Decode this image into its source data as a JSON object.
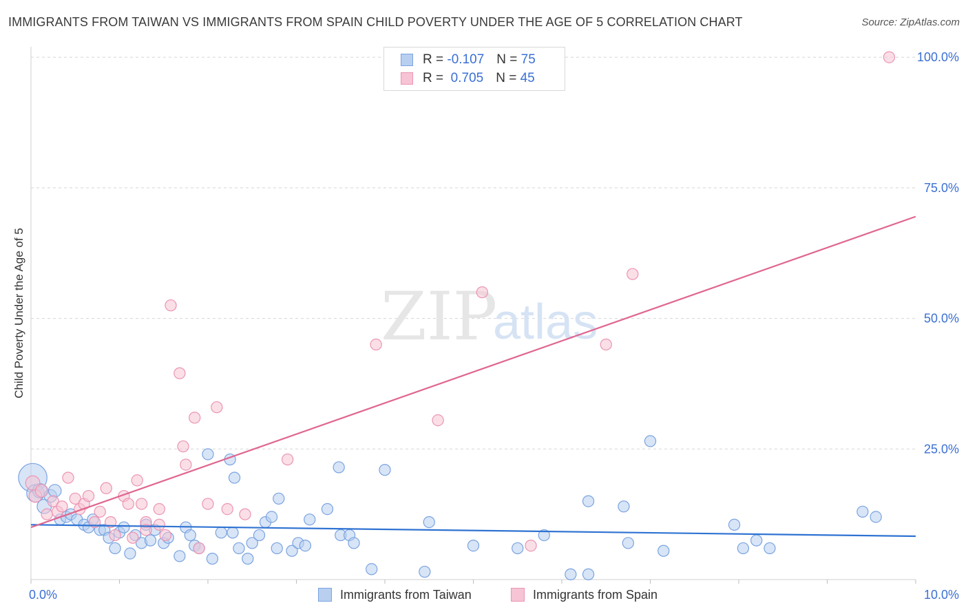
{
  "header": {
    "title": "IMMIGRANTS FROM TAIWAN VS IMMIGRANTS FROM SPAIN CHILD POVERTY UNDER THE AGE OF 5 CORRELATION CHART",
    "source": "Source: ZipAtlas.com"
  },
  "watermark": {
    "part1": "ZIP",
    "part2": "atlas"
  },
  "legend": {
    "rows": [
      {
        "r_label": "R =",
        "r_value": "-0.107",
        "n_label": "N =",
        "n_value": "75"
      },
      {
        "r_label": "R =",
        "r_value": "0.705",
        "n_label": "N =",
        "n_value": "45"
      }
    ]
  },
  "bottom_legend": {
    "taiwan": "Immigrants from Taiwan",
    "spain": "Immigrants from Spain"
  },
  "colors": {
    "taiwan_fill": "#b8cff0",
    "taiwan_stroke": "#7aa3e0",
    "taiwan_line": "#2e72d2",
    "spain_fill": "#f6c4d4",
    "spain_stroke": "#ec94b2",
    "spain_line": "#e06690",
    "tick_label": "#3a6fd4",
    "grid": "#d5d5d5"
  },
  "chart_data": {
    "type": "scatter",
    "title": "IMMIGRANTS FROM TAIWAN VS IMMIGRANTS FROM SPAIN CHILD POVERTY UNDER THE AGE OF 5 CORRELATION CHART",
    "xlabel": "",
    "ylabel": "Child Poverty Under the Age of 5",
    "xlim": [
      0,
      10
    ],
    "ylim": [
      0,
      102
    ],
    "x_ticks": [
      0,
      1,
      2,
      3,
      4,
      5,
      6,
      7,
      8,
      9,
      10
    ],
    "x_tick_labels": [
      {
        "value": 0,
        "label": "0.0%"
      },
      {
        "value": 10,
        "label": "10.0%"
      }
    ],
    "y_ticks": [
      {
        "value": 25,
        "label": "25.0%"
      },
      {
        "value": 50,
        "label": "50.0%"
      },
      {
        "value": 75,
        "label": "75.0%"
      },
      {
        "value": 100,
        "label": "100.0%"
      }
    ],
    "series": [
      {
        "name": "Immigrants from Taiwan",
        "R": -0.107,
        "N": 75,
        "trend": {
          "x": [
            0,
            10
          ],
          "y": [
            10.5,
            8.3
          ]
        },
        "points": [
          [
            0.02,
            19.5,
            18
          ],
          [
            0.05,
            16.5,
            11
          ],
          [
            0.1,
            17,
            9
          ],
          [
            0.15,
            14,
            9
          ],
          [
            0.22,
            16,
            8
          ],
          [
            0.27,
            17,
            8
          ],
          [
            0.33,
            11.5,
            7
          ],
          [
            0.4,
            12,
            7
          ],
          [
            0.45,
            12.5,
            7
          ],
          [
            0.52,
            11.5,
            7
          ],
          [
            0.6,
            10.5,
            7
          ],
          [
            0.65,
            10,
            7
          ],
          [
            0.7,
            11.5,
            7
          ],
          [
            0.78,
            9.5,
            7
          ],
          [
            0.83,
            9.5,
            7
          ],
          [
            0.88,
            8,
            7
          ],
          [
            0.95,
            6,
            7
          ],
          [
            1.0,
            9,
            7
          ],
          [
            1.05,
            10,
            7
          ],
          [
            1.12,
            5,
            7
          ],
          [
            1.18,
            8.5,
            7
          ],
          [
            1.25,
            7,
            7
          ],
          [
            1.3,
            10.5,
            7
          ],
          [
            1.35,
            7.5,
            7
          ],
          [
            1.4,
            9.5,
            7
          ],
          [
            1.5,
            7,
            7
          ],
          [
            1.55,
            8,
            7
          ],
          [
            1.68,
            4.5,
            7
          ],
          [
            1.75,
            10,
            7
          ],
          [
            1.8,
            8.5,
            7
          ],
          [
            1.85,
            6.5,
            7
          ],
          [
            1.9,
            6,
            7
          ],
          [
            2.0,
            24,
            7
          ],
          [
            2.05,
            4,
            7
          ],
          [
            2.15,
            9,
            7
          ],
          [
            2.25,
            23,
            7
          ],
          [
            2.28,
            9,
            7
          ],
          [
            2.35,
            6,
            7
          ],
          [
            2.3,
            19.5,
            7
          ],
          [
            2.45,
            4,
            7
          ],
          [
            2.5,
            7,
            7
          ],
          [
            2.58,
            8.5,
            7
          ],
          [
            2.65,
            11,
            7
          ],
          [
            2.72,
            12,
            7
          ],
          [
            2.78,
            6,
            7
          ],
          [
            2.8,
            15.5,
            7
          ],
          [
            2.95,
            5.5,
            7
          ],
          [
            3.02,
            7,
            7
          ],
          [
            3.1,
            6.5,
            7
          ],
          [
            3.15,
            11.5,
            7
          ],
          [
            3.35,
            13.5,
            7
          ],
          [
            3.48,
            21.5,
            7
          ],
          [
            3.5,
            8.5,
            7
          ],
          [
            3.6,
            8.5,
            7
          ],
          [
            3.65,
            7,
            7
          ],
          [
            3.85,
            2,
            7
          ],
          [
            4.0,
            21,
            7
          ],
          [
            4.45,
            1.5,
            7
          ],
          [
            4.5,
            11,
            7
          ],
          [
            5.0,
            6.5,
            7
          ],
          [
            5.5,
            6,
            7
          ],
          [
            5.8,
            8.5,
            7
          ],
          [
            6.3,
            15,
            7
          ],
          [
            6.1,
            1,
            7
          ],
          [
            6.3,
            1,
            7
          ],
          [
            6.7,
            14,
            7
          ],
          [
            6.75,
            7,
            7
          ],
          [
            7.0,
            26.5,
            7
          ],
          [
            7.15,
            5.5,
            7
          ],
          [
            7.95,
            10.5,
            7
          ],
          [
            8.05,
            6,
            7
          ],
          [
            8.2,
            7.5,
            7
          ],
          [
            8.35,
            6,
            7
          ],
          [
            9.4,
            13,
            7
          ],
          [
            9.55,
            12,
            7
          ]
        ]
      },
      {
        "name": "Immigrants from Spain",
        "R": 0.705,
        "N": 45,
        "trend": {
          "x": [
            0,
            10
          ],
          "y": [
            10.0,
            69.5
          ]
        },
        "points": [
          [
            0.02,
            18.5,
            9
          ],
          [
            0.05,
            16,
            8
          ],
          [
            0.12,
            17,
            8
          ],
          [
            0.18,
            12.5,
            7
          ],
          [
            0.25,
            15,
            7
          ],
          [
            0.3,
            13,
            7
          ],
          [
            0.35,
            14,
            7
          ],
          [
            0.42,
            19.5,
            7
          ],
          [
            0.5,
            15.5,
            7
          ],
          [
            0.55,
            13.5,
            7
          ],
          [
            0.6,
            14.5,
            7
          ],
          [
            0.65,
            16,
            7
          ],
          [
            0.72,
            11,
            7
          ],
          [
            0.78,
            13,
            7
          ],
          [
            0.85,
            17.5,
            7
          ],
          [
            0.9,
            11,
            7
          ],
          [
            0.95,
            8.5,
            7
          ],
          [
            1.05,
            16,
            7
          ],
          [
            1.1,
            14.5,
            7
          ],
          [
            1.2,
            19,
            7
          ],
          [
            1.25,
            14.5,
            7
          ],
          [
            1.3,
            11,
            7
          ],
          [
            1.45,
            13.5,
            7
          ],
          [
            1.52,
            8.5,
            7
          ],
          [
            1.58,
            52.5,
            7
          ],
          [
            1.68,
            39.5,
            7
          ],
          [
            1.72,
            25.5,
            7
          ],
          [
            1.75,
            22,
            7
          ],
          [
            1.85,
            31,
            7
          ],
          [
            1.9,
            6,
            7
          ],
          [
            2.0,
            14.5,
            7
          ],
          [
            2.1,
            33,
            7
          ],
          [
            2.22,
            13.5,
            7
          ],
          [
            2.42,
            12.5,
            7
          ],
          [
            2.9,
            23,
            7
          ],
          [
            3.9,
            45,
            7
          ],
          [
            4.6,
            30.5,
            7
          ],
          [
            5.1,
            55,
            7
          ],
          [
            5.65,
            6.5,
            7
          ],
          [
            6.5,
            45,
            7
          ],
          [
            6.8,
            58.5,
            7
          ],
          [
            9.7,
            100,
            7
          ],
          [
            1.45,
            10.5,
            7
          ],
          [
            1.3,
            9.5,
            7
          ],
          [
            1.15,
            8,
            7
          ]
        ]
      }
    ]
  }
}
